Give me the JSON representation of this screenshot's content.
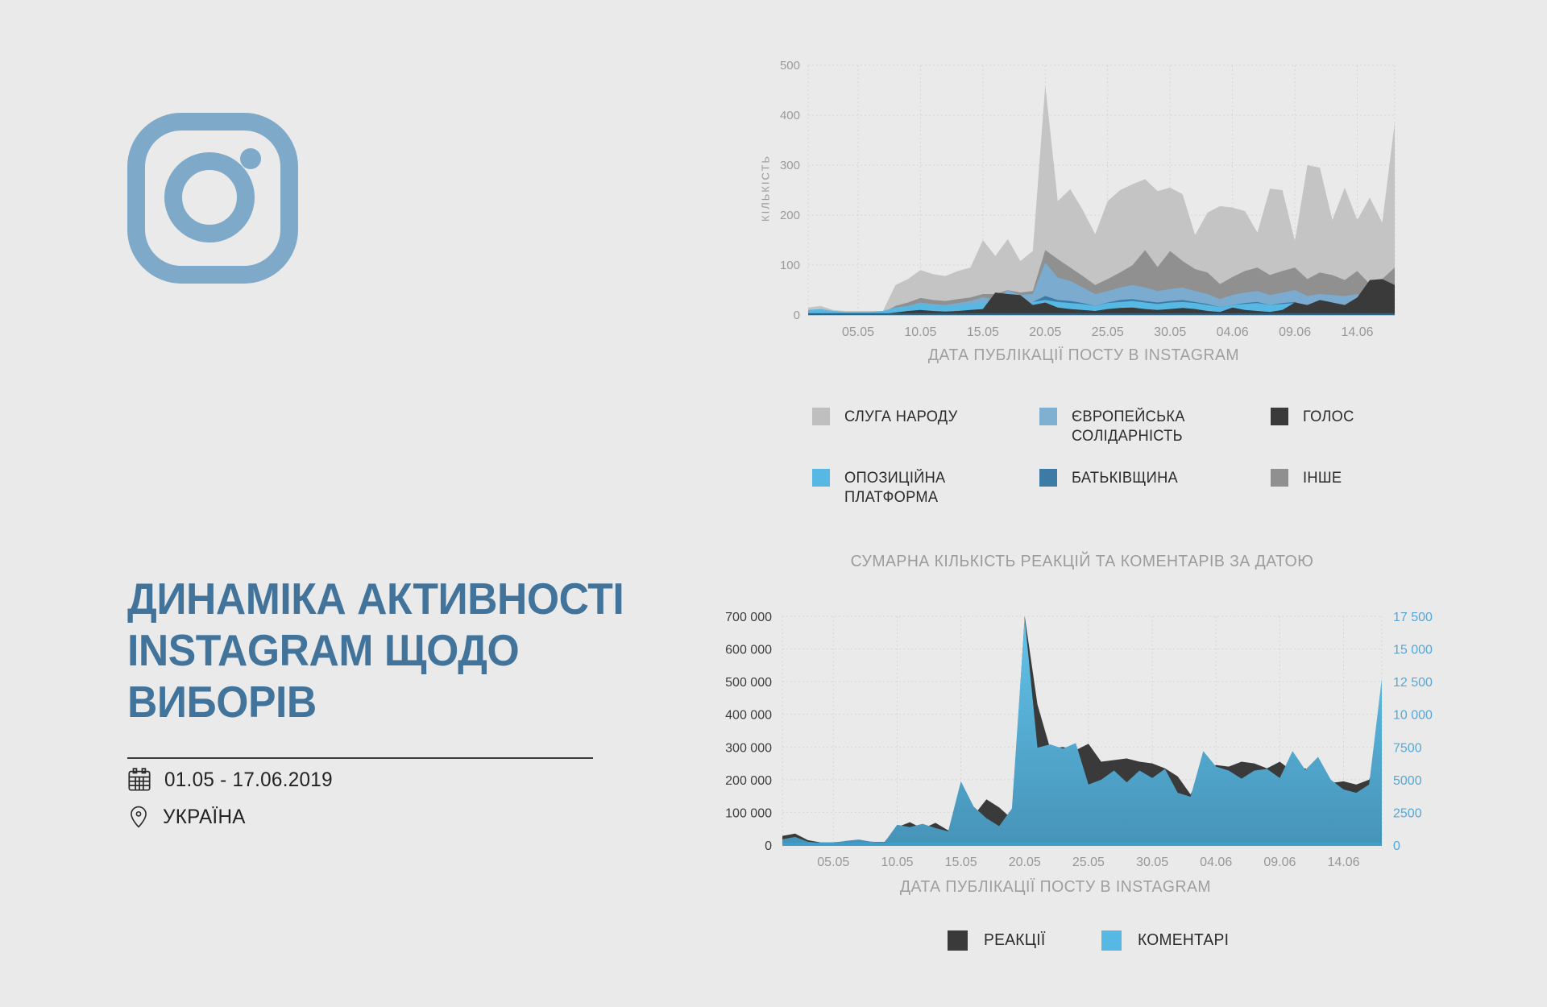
{
  "page": {
    "background": "#eaeaea"
  },
  "brand": {
    "icon": "instagram-icon",
    "color": "#7fa9c8"
  },
  "intro": {
    "title": "ДИНАМІКА АКТИВНОСТІ INSTAGRAM ЩОДО ВИБОРІВ",
    "title_color": "#42749b",
    "period": "01.05 - 17.06.2019",
    "location": "УКРАЇНА",
    "period_icon": "calendar-icon",
    "location_icon": "location-pin-icon"
  },
  "chart_data": [
    {
      "name": "posts-by-date",
      "type": "area",
      "title": "",
      "xlabel": "ДАТА ПУБЛІКАЦІЇ ПОСТУ В INSTAGRAM",
      "ylabel": "КІЛЬКІСТЬ",
      "ylim": [
        0,
        500
      ],
      "yticks": [
        0,
        100,
        200,
        300,
        400,
        500
      ],
      "n_points": 48,
      "x_range": "01.05 - 17.06",
      "x_tick_labels": [
        "05.05",
        "10.05",
        "15.05",
        "20.05",
        "25.05",
        "30.05",
        "04.06",
        "09.06",
        "14.06"
      ],
      "x_tick_indices": [
        4,
        9,
        14,
        19,
        24,
        29,
        34,
        39,
        44
      ],
      "grid": true,
      "series": [
        {
          "name": "СЛУГА НАРОДУ",
          "color": "#c4c4c4",
          "values": [
            15,
            18,
            10,
            8,
            8,
            8,
            8,
            60,
            72,
            90,
            82,
            78,
            88,
            95,
            150,
            118,
            152,
            108,
            128,
            460,
            228,
            252,
            210,
            162,
            228,
            250,
            262,
            272,
            248,
            255,
            242,
            160,
            205,
            218,
            215,
            208,
            165,
            253,
            250,
            148,
            300,
            295,
            190,
            255,
            190,
            235,
            185,
            385
          ]
        },
        {
          "name": "ІНШЕ",
          "color": "#909090",
          "values": [
            8,
            10,
            6,
            5,
            5,
            5,
            5,
            18,
            25,
            34,
            30,
            28,
            32,
            35,
            42,
            42,
            50,
            45,
            48,
            130,
            112,
            95,
            78,
            60,
            72,
            85,
            100,
            130,
            96,
            128,
            108,
            92,
            85,
            62,
            76,
            88,
            95,
            80,
            88,
            95,
            72,
            85,
            80,
            70,
            88,
            62,
            72,
            95
          ]
        },
        {
          "name": "ЄВРОПЕЙСЬКА СОЛІДАРНІСТЬ",
          "color": "#7babce",
          "values": [
            5,
            6,
            4,
            3,
            3,
            3,
            4,
            12,
            18,
            25,
            22,
            20,
            24,
            28,
            36,
            30,
            50,
            40,
            42,
            105,
            75,
            68,
            55,
            42,
            48,
            55,
            60,
            55,
            48,
            52,
            55,
            48,
            42,
            32,
            40,
            45,
            48,
            40,
            45,
            50,
            38,
            42,
            40,
            38,
            42,
            30,
            35,
            45
          ]
        },
        {
          "name": "БАТЬКІВЩИНА",
          "color": "#3d7ba6",
          "values": [
            3,
            4,
            2,
            2,
            2,
            2,
            3,
            8,
            12,
            16,
            14,
            12,
            15,
            18,
            22,
            20,
            28,
            24,
            26,
            38,
            30,
            28,
            24,
            18,
            25,
            30,
            32,
            28,
            25,
            28,
            30,
            26,
            22,
            16,
            20,
            24,
            26,
            20,
            24,
            26,
            18,
            22,
            20,
            18,
            22,
            15,
            18,
            25
          ]
        },
        {
          "name": "ОПОЗИЦІЙНА ПЛАТФОРМА",
          "color": "#57b8e3",
          "values": [
            10,
            12,
            8,
            6,
            6,
            6,
            8,
            15,
            18,
            22,
            20,
            18,
            20,
            22,
            25,
            22,
            28,
            25,
            26,
            30,
            26,
            24,
            22,
            18,
            24,
            26,
            28,
            25,
            22,
            25,
            26,
            24,
            20,
            16,
            20,
            22,
            24,
            20,
            22,
            24,
            18,
            20,
            19,
            17,
            20,
            15,
            17,
            22
          ]
        },
        {
          "name": "ГОЛОС",
          "color": "#3a3a3a",
          "values": [
            2,
            3,
            2,
            1,
            1,
            1,
            2,
            5,
            8,
            10,
            8,
            7,
            8,
            10,
            12,
            45,
            42,
            40,
            20,
            25,
            15,
            12,
            10,
            8,
            12,
            14,
            15,
            12,
            10,
            12,
            14,
            12,
            8,
            6,
            15,
            10,
            8,
            6,
            10,
            25,
            20,
            30,
            25,
            20,
            35,
            70,
            72,
            60
          ]
        }
      ],
      "legend": [
        {
          "label": "СЛУГА НАРОДУ",
          "color": "#bfbfbf"
        },
        {
          "label": "ЄВРОПЕЙСЬКА\nСОЛІДАРНІСТЬ",
          "color": "#7fb0d2"
        },
        {
          "label": "ГОЛОС",
          "color": "#3a3a3a"
        },
        {
          "label": "ОПОЗИЦІЙНА\nПЛАТФОРМА",
          "color": "#57b8e3"
        },
        {
          "label": "БАТЬКІВЩИНА",
          "color": "#3d7ba6"
        },
        {
          "label": "ІНШЕ",
          "color": "#909090"
        }
      ]
    },
    {
      "name": "reactions-comments-by-date",
      "type": "area",
      "title": "СУМАРНА КІЛЬКІСТЬ РЕАКЦІЙ ТА КОМЕНТАРІВ ЗА ДАТОЮ",
      "xlabel": "ДАТА ПУБЛІКАЦІЇ ПОСТУ В INSTAGRAM",
      "ylim_left": [
        0,
        700000
      ],
      "yticks_left_values": [
        0,
        100000,
        200000,
        300000,
        400000,
        500000,
        600000,
        700000
      ],
      "yticks_left_labels": [
        "0",
        "100 000",
        "200 000",
        "300 000",
        "400 000",
        "500 000",
        "600 000",
        "700 000"
      ],
      "ylim_right": [
        0,
        17500
      ],
      "yticks_right_values": [
        0,
        2500,
        5000,
        7500,
        10000,
        12500,
        15000,
        17500
      ],
      "yticks_right_labels": [
        "0",
        "2500",
        "5000",
        "7500",
        "10 000",
        "12 500",
        "15 000",
        "17 500"
      ],
      "n_points": 48,
      "x_range": "01.05 - 17.06",
      "x_tick_labels": [
        "05.05",
        "10.05",
        "15.05",
        "20.05",
        "25.05",
        "30.05",
        "04.06",
        "09.06",
        "14.06"
      ],
      "x_tick_indices": [
        4,
        9,
        14,
        19,
        24,
        29,
        34,
        39,
        44
      ],
      "grid": true,
      "series": [
        {
          "name": "РЕАКЦІЇ",
          "axis": "left",
          "color": "#3a3a3a",
          "values": [
            28000,
            35000,
            15000,
            8000,
            8000,
            12000,
            15000,
            10000,
            9000,
            55000,
            70000,
            50000,
            68000,
            45000,
            60000,
            90000,
            140000,
            115000,
            80000,
            700000,
            430000,
            295000,
            300000,
            290000,
            310000,
            255000,
            260000,
            265000,
            255000,
            250000,
            235000,
            210000,
            155000,
            230000,
            245000,
            240000,
            255000,
            250000,
            235000,
            255000,
            225000,
            235000,
            205000,
            190000,
            195000,
            185000,
            200000,
            290000
          ]
        },
        {
          "name": "КОМЕНТАРІ",
          "axis": "right",
          "color": "#57b8e3",
          "gradient": [
            "#63c3ea",
            "#4693b8"
          ],
          "values": [
            450,
            625,
            250,
            175,
            175,
            325,
            425,
            250,
            200,
            1550,
            1375,
            1625,
            1300,
            1050,
            4875,
            2950,
            2050,
            1450,
            2800,
            17325,
            7450,
            7700,
            7375,
            7800,
            4625,
            5000,
            5700,
            4800,
            5700,
            5125,
            5825,
            4000,
            3700,
            7200,
            6000,
            5700,
            5075,
            5700,
            5825,
            5125,
            7200,
            5750,
            6750,
            5000,
            4250,
            4000,
            4625,
            12750
          ]
        }
      ],
      "legend": [
        {
          "label": "РЕАКЦІЇ",
          "color": "#3a3a3a"
        },
        {
          "label": "КОМЕНТАРІ",
          "color": "#57b8e3"
        }
      ]
    }
  ]
}
